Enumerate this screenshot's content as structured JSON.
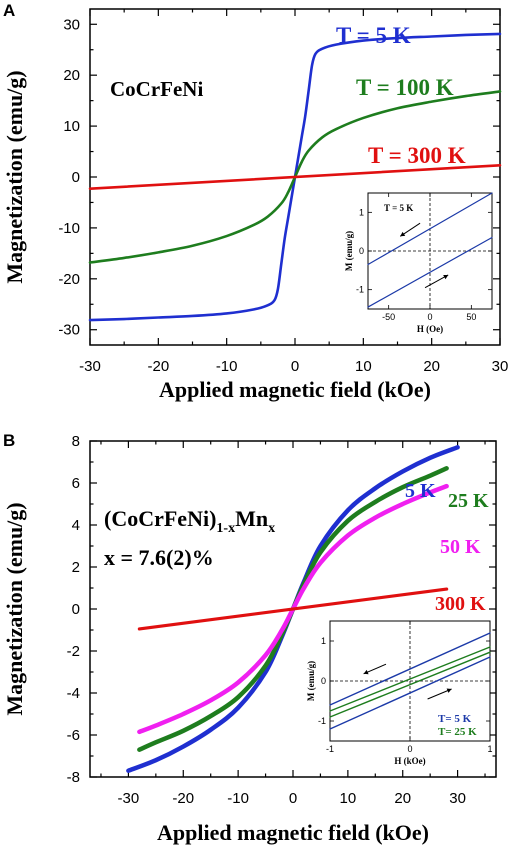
{
  "colors": {
    "blue": "#1f2fd0",
    "green": "#1e7d1e",
    "red": "#e01010",
    "magenta": "#f020f0",
    "inset_line": "#1c3aa8"
  },
  "chart_data": [
    {
      "panel_label": "A",
      "type": "line",
      "sample": "CoCrFeNi",
      "xlabel": "Applied magnetic field (kOe)",
      "ylabel": "Magnetization (emu/g)",
      "xlim": [
        -30,
        30
      ],
      "ylim": [
        -33,
        33
      ],
      "xticks": [
        -30,
        -20,
        -10,
        0,
        10,
        20,
        30
      ],
      "yticks": [
        -30,
        -20,
        -10,
        0,
        10,
        20,
        30
      ],
      "series": [
        {
          "name": "T = 5 K",
          "color": "#1f2fd0",
          "x": [
            -30,
            -25,
            -20,
            -15,
            -10,
            -6,
            -4,
            -3,
            -2.5,
            -2,
            -1.5,
            -1,
            -0.5,
            0,
            0.5,
            1,
            1.5,
            2,
            2.5,
            3,
            4,
            6,
            10,
            15,
            20,
            25,
            30
          ],
          "y": [
            -28.1,
            -27.9,
            -27.6,
            -27.3,
            -26.8,
            -26.0,
            -25.2,
            -24.2,
            -22.0,
            -17.0,
            -12.0,
            -8.0,
            -4.0,
            0,
            4.0,
            8.0,
            12.0,
            17.0,
            22.0,
            24.2,
            25.2,
            26.0,
            26.8,
            27.3,
            27.6,
            27.9,
            28.1
          ]
        },
        {
          "name": "T = 100 K",
          "color": "#1e7d1e",
          "x": [
            -30,
            -25,
            -20,
            -15,
            -10,
            -6,
            -4,
            -2,
            -1,
            0,
            1,
            2,
            4,
            6,
            10,
            15,
            20,
            25,
            30
          ],
          "y": [
            -16.8,
            -15.9,
            -14.8,
            -13.5,
            -11.6,
            -9.4,
            -7.8,
            -5.2,
            -3.0,
            0,
            3.0,
            5.2,
            7.8,
            9.4,
            11.6,
            13.5,
            14.8,
            15.9,
            16.8
          ]
        },
        {
          "name": "T = 300 K",
          "color": "#e01010",
          "x": [
            -30,
            30
          ],
          "y": [
            -2.3,
            2.3
          ]
        }
      ],
      "inset": {
        "annotation": "T = 5 K",
        "xlabel": "H  (Oe)",
        "ylabel": "M (emu/g)",
        "xlim": [
          -75,
          75
        ],
        "ylim": [
          -1.5,
          1.5
        ],
        "xticks": [
          -50,
          0,
          50
        ],
        "yticks": [
          -1,
          0,
          1
        ],
        "branches": [
          {
            "x": [
              -75,
              75
            ],
            "y": [
              -0.35,
              1.5
            ]
          },
          {
            "x": [
              -75,
              75
            ],
            "y": [
              -1.45,
              0.35
            ]
          }
        ]
      }
    },
    {
      "panel_label": "B",
      "type": "line",
      "sample_main": "(CoCrFeNi)",
      "sample_sub": "1-x",
      "sample_tail": "Mn",
      "sample_tail_sub": "x",
      "composition": "x = 7.6(2)%",
      "xlabel": "Applied magnetic field (kOe)",
      "ylabel": "Magnetization (emu/g)",
      "xlim": [
        -37,
        37
      ],
      "ylim": [
        -8,
        8
      ],
      "xticks": [
        -30,
        -20,
        -10,
        0,
        10,
        20,
        30
      ],
      "yticks": [
        -8,
        -6,
        -4,
        -2,
        0,
        2,
        4,
        6,
        8
      ],
      "series": [
        {
          "name": "5 K",
          "color": "#1f2fd0",
          "x": [
            -30,
            -25,
            -20,
            -15,
            -10,
            -5,
            -2,
            0,
            2,
            5,
            10,
            15,
            20,
            25,
            30
          ],
          "y": [
            -7.7,
            -7.2,
            -6.55,
            -5.75,
            -4.7,
            -3.0,
            -1.3,
            0,
            1.3,
            3.0,
            4.7,
            5.75,
            6.55,
            7.2,
            7.7
          ]
        },
        {
          "name": "25 K",
          "color": "#1e7d1e",
          "x": [
            -28,
            -25,
            -20,
            -15,
            -10,
            -5,
            -2,
            0,
            2,
            5,
            10,
            15,
            20,
            25,
            28
          ],
          "y": [
            -6.7,
            -6.35,
            -5.8,
            -5.1,
            -4.2,
            -2.7,
            -1.2,
            0,
            1.2,
            2.7,
            4.2,
            5.1,
            5.8,
            6.35,
            6.7
          ]
        },
        {
          "name": "50 K",
          "color": "#f020f0",
          "x": [
            -28,
            -25,
            -20,
            -15,
            -10,
            -5,
            -2,
            0,
            2,
            5,
            10,
            15,
            20,
            25,
            28
          ],
          "y": [
            -5.85,
            -5.55,
            -5.0,
            -4.35,
            -3.5,
            -2.2,
            -1.0,
            0,
            1.0,
            2.2,
            3.5,
            4.35,
            5.0,
            5.55,
            5.85
          ]
        },
        {
          "name": "300 K",
          "color": "#e01010",
          "x": [
            -28,
            28
          ],
          "y": [
            -0.95,
            0.95
          ]
        }
      ],
      "inset": {
        "xlabel": "H  (kOe)",
        "ylabel": "M (emu/g)",
        "xlim": [
          -1,
          1
        ],
        "ylim": [
          -1.5,
          1.5
        ],
        "xticks": [
          -1,
          0,
          1
        ],
        "yticks": [
          -1,
          0,
          1
        ],
        "legend": [
          "T= 5 K",
          "T= 25 K"
        ],
        "branches": [
          {
            "name": "T= 5 K",
            "color": "#1c3aa8",
            "x": [
              -1,
              1
            ],
            "y": [
              -0.6,
              1.2
            ]
          },
          {
            "name": "T= 5 K",
            "color": "#1c3aa8",
            "x": [
              -1,
              1
            ],
            "y": [
              -1.2,
              0.6
            ]
          },
          {
            "name": "T= 25 K",
            "color": "#1e7d1e",
            "x": [
              -1,
              1
            ],
            "y": [
              -0.75,
              0.85
            ]
          },
          {
            "name": "T= 25 K",
            "color": "#1e7d1e",
            "x": [
              -1,
              1
            ],
            "y": [
              -0.9,
              0.72
            ]
          }
        ]
      }
    }
  ]
}
